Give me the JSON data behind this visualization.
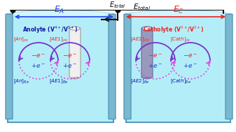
{
  "title": "E_{total}",
  "EA_label": "E_A",
  "EC_label": "E_C",
  "anolyte_label": "Anolyte (V⁴⁺/V⁵⁺)",
  "catholyte_label": "Catholyte (V³⁺/V²⁺)",
  "an_ox": "[An]_{ox}",
  "an_re": "[An]_{Re}",
  "ae1_ox": "[AE1]_{ox}",
  "ae1_re": "[AE1]_{Re}",
  "ae2_ox": "[AE2]_{Ox}",
  "ae2_re": "[AE2]_{Re}",
  "cath_ox": "[Cath]_{ox}",
  "cath_re": "[Cath]_{Re}",
  "em": "-e⁻",
  "ep": "+e⁻",
  "bg_color": "#e8f8fc",
  "tank_color": "#b3eef8",
  "wall_color": "#5599bb",
  "electrode_color_white": "#f0f0f0",
  "electrode_color_gray": "#9999bb",
  "circle_solid_color": "#7733cc",
  "circle_dot_color": "#dd44dd",
  "arrow_color_red": "#ee2222",
  "arrow_color_blue": "#2244cc",
  "label_color_blue": "#2244ee",
  "label_color_red": "#ee2222",
  "label_color_dark_blue": "#1111aa",
  "wire_color": "#111111"
}
